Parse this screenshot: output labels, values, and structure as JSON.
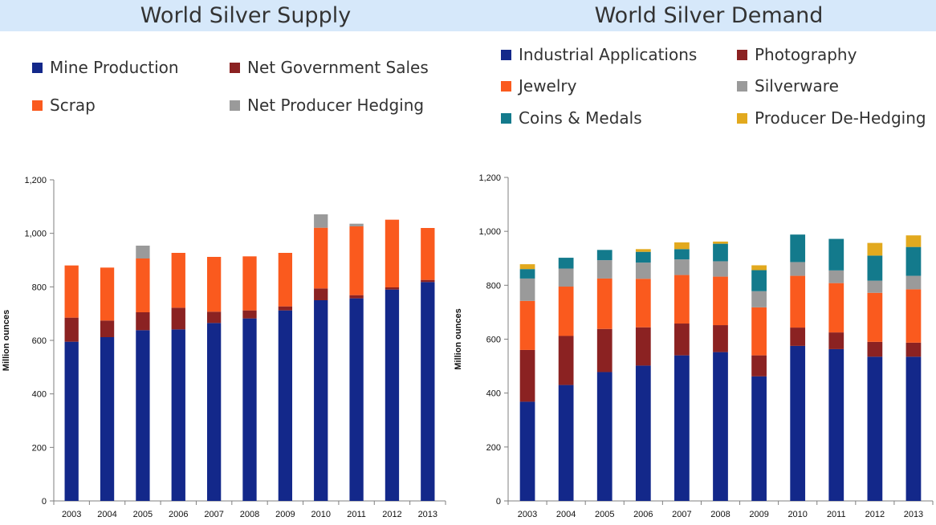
{
  "supply_title": "World Silver Supply",
  "demand_title": "World Silver Demand",
  "chart_data": [
    {
      "type": "bar",
      "stacked": true,
      "title": "World Silver Supply",
      "xlabel": "",
      "ylabel": "Million ounces",
      "ylim": [
        0,
        1200
      ],
      "yticks": [
        "0",
        "200",
        "400",
        "600",
        "800",
        "1,000",
        "1,200"
      ],
      "grid": false,
      "legend_position": "top",
      "categories": [
        "2003",
        "2004",
        "2005",
        "2006",
        "2007",
        "2008",
        "2009",
        "2010",
        "2011",
        "2012",
        "2013"
      ],
      "series": [
        {
          "name": "Mine Production",
          "color": "#13288a",
          "values": [
            595,
            612,
            638,
            641,
            665,
            682,
            712,
            750,
            757,
            790,
            818
          ]
        },
        {
          "name": "Net Government Sales",
          "color": "#8b2222",
          "values": [
            90,
            62,
            67,
            81,
            42,
            30,
            15,
            44,
            12,
            8,
            8
          ]
        },
        {
          "name": "Scrap",
          "color": "#fa5a1e",
          "values": [
            195,
            198,
            201,
            205,
            205,
            202,
            200,
            227,
            257,
            253,
            194
          ]
        },
        {
          "name": "Net Producer Hedging",
          "color": "#9a9a9a",
          "values": [
            0,
            0,
            48,
            0,
            0,
            0,
            0,
            50,
            10,
            0,
            0
          ]
        }
      ]
    },
    {
      "type": "bar",
      "stacked": true,
      "title": "World Silver Demand",
      "xlabel": "",
      "ylabel": "Million ounces",
      "ylim": [
        0,
        1200
      ],
      "yticks": [
        "0",
        "200",
        "400",
        "600",
        "800",
        "1,000",
        "1,200"
      ],
      "grid": false,
      "legend_position": "top",
      "categories": [
        "2003",
        "2004",
        "2005",
        "2006",
        "2007",
        "2008",
        "2009",
        "2010",
        "2011",
        "2012",
        "2013"
      ],
      "series": [
        {
          "name": "Industrial Applications",
          "color": "#13288a",
          "values": [
            368,
            430,
            478,
            502,
            540,
            552,
            462,
            575,
            563,
            535,
            535
          ]
        },
        {
          "name": "Photography",
          "color": "#8b2222",
          "values": [
            192,
            182,
            160,
            142,
            118,
            100,
            78,
            68,
            62,
            55,
            52
          ]
        },
        {
          "name": "Jewelry",
          "color": "#fa5a1e",
          "values": [
            182,
            183,
            187,
            180,
            180,
            180,
            178,
            192,
            183,
            182,
            198
          ]
        },
        {
          "name": "Silverware",
          "color": "#9a9a9a",
          "values": [
            83,
            67,
            68,
            60,
            58,
            57,
            60,
            51,
            47,
            45,
            50
          ]
        },
        {
          "name": "Coins & Medals",
          "color": "#137a8c",
          "values": [
            35,
            40,
            38,
            40,
            38,
            65,
            78,
            102,
            117,
            93,
            107
          ]
        },
        {
          "name": "Producer De-Hedging",
          "color": "#e2a91e",
          "values": [
            18,
            0,
            0,
            10,
            25,
            8,
            18,
            0,
            0,
            47,
            43
          ]
        }
      ]
    }
  ]
}
